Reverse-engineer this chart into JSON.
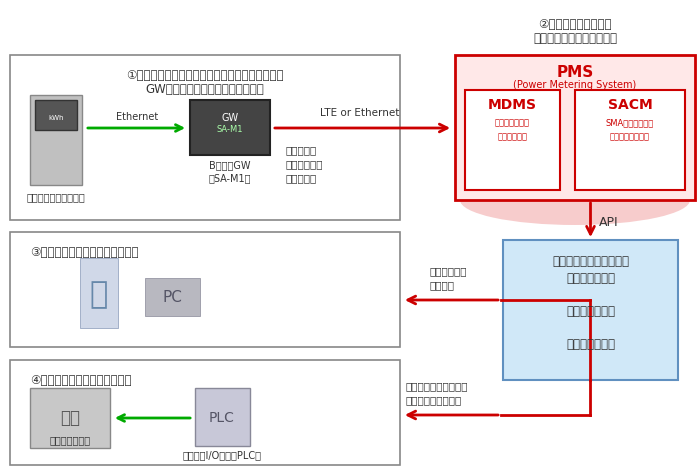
{
  "fig_width": 7.0,
  "fig_height": 4.74,
  "bg_color": "#ffffff",
  "title_top1": "②収集データ見える化",
  "title_top2": "機器管理およびデータ管理",
  "box1_title": "①高圧スマートメーターブルートでデータを収集",
  "box1_subtitle": "GW機器で使用電力量を推定・監視",
  "box1_label1": "高圧スマートメーター",
  "box1_label2": "BルートGW\n「SA-M1」",
  "ethernet_label": "Ethernet",
  "lte_label": "LTE or Ethernet",
  "data_label": "データ送信\n・収集データ\n・指定結果",
  "box2_title": "③デマンド通知に伴うアクション",
  "box3_title": "④デマンド通知に伴う自動制御",
  "box3_label1": "空調機室外機等",
  "box3_label2": "リモートI/O装置、PLC等",
  "pms_title": "PMS",
  "pms_subtitle": "(Power Metering System)",
  "mdms_title": "MDMS",
  "mdms_sub1": "メーターデータ",
  "mdms_sub2": "管理システム",
  "sacm_title": "SACM",
  "sacm_sub1": "SMA認証取得端末",
  "sacm_sub2": "集中管理システム",
  "api_label": "API",
  "energy_line1": "エネルギーマネジメント",
  "energy_line2": "サービス事業者",
  "energy_line3": "小売電気事業者",
  "energy_line4": "高圧小口需要家",
  "demand_label": "デマンド通知\n・メール",
  "demand_control_label": "デマンドコントロール\n・コントロール信号",
  "red_color": "#cc0000",
  "green_color": "#00aa00",
  "pms_bg": "#ffe8e8",
  "pms_border": "#cc0000",
  "mdms_bg": "#ffffff",
  "mdms_border": "#cc0000",
  "energy_bg": "#d0e8f8",
  "energy_border": "#6090c0",
  "box_bg": "#ffffff",
  "box_border": "#888888",
  "cloud_color": "#f5c0c0"
}
